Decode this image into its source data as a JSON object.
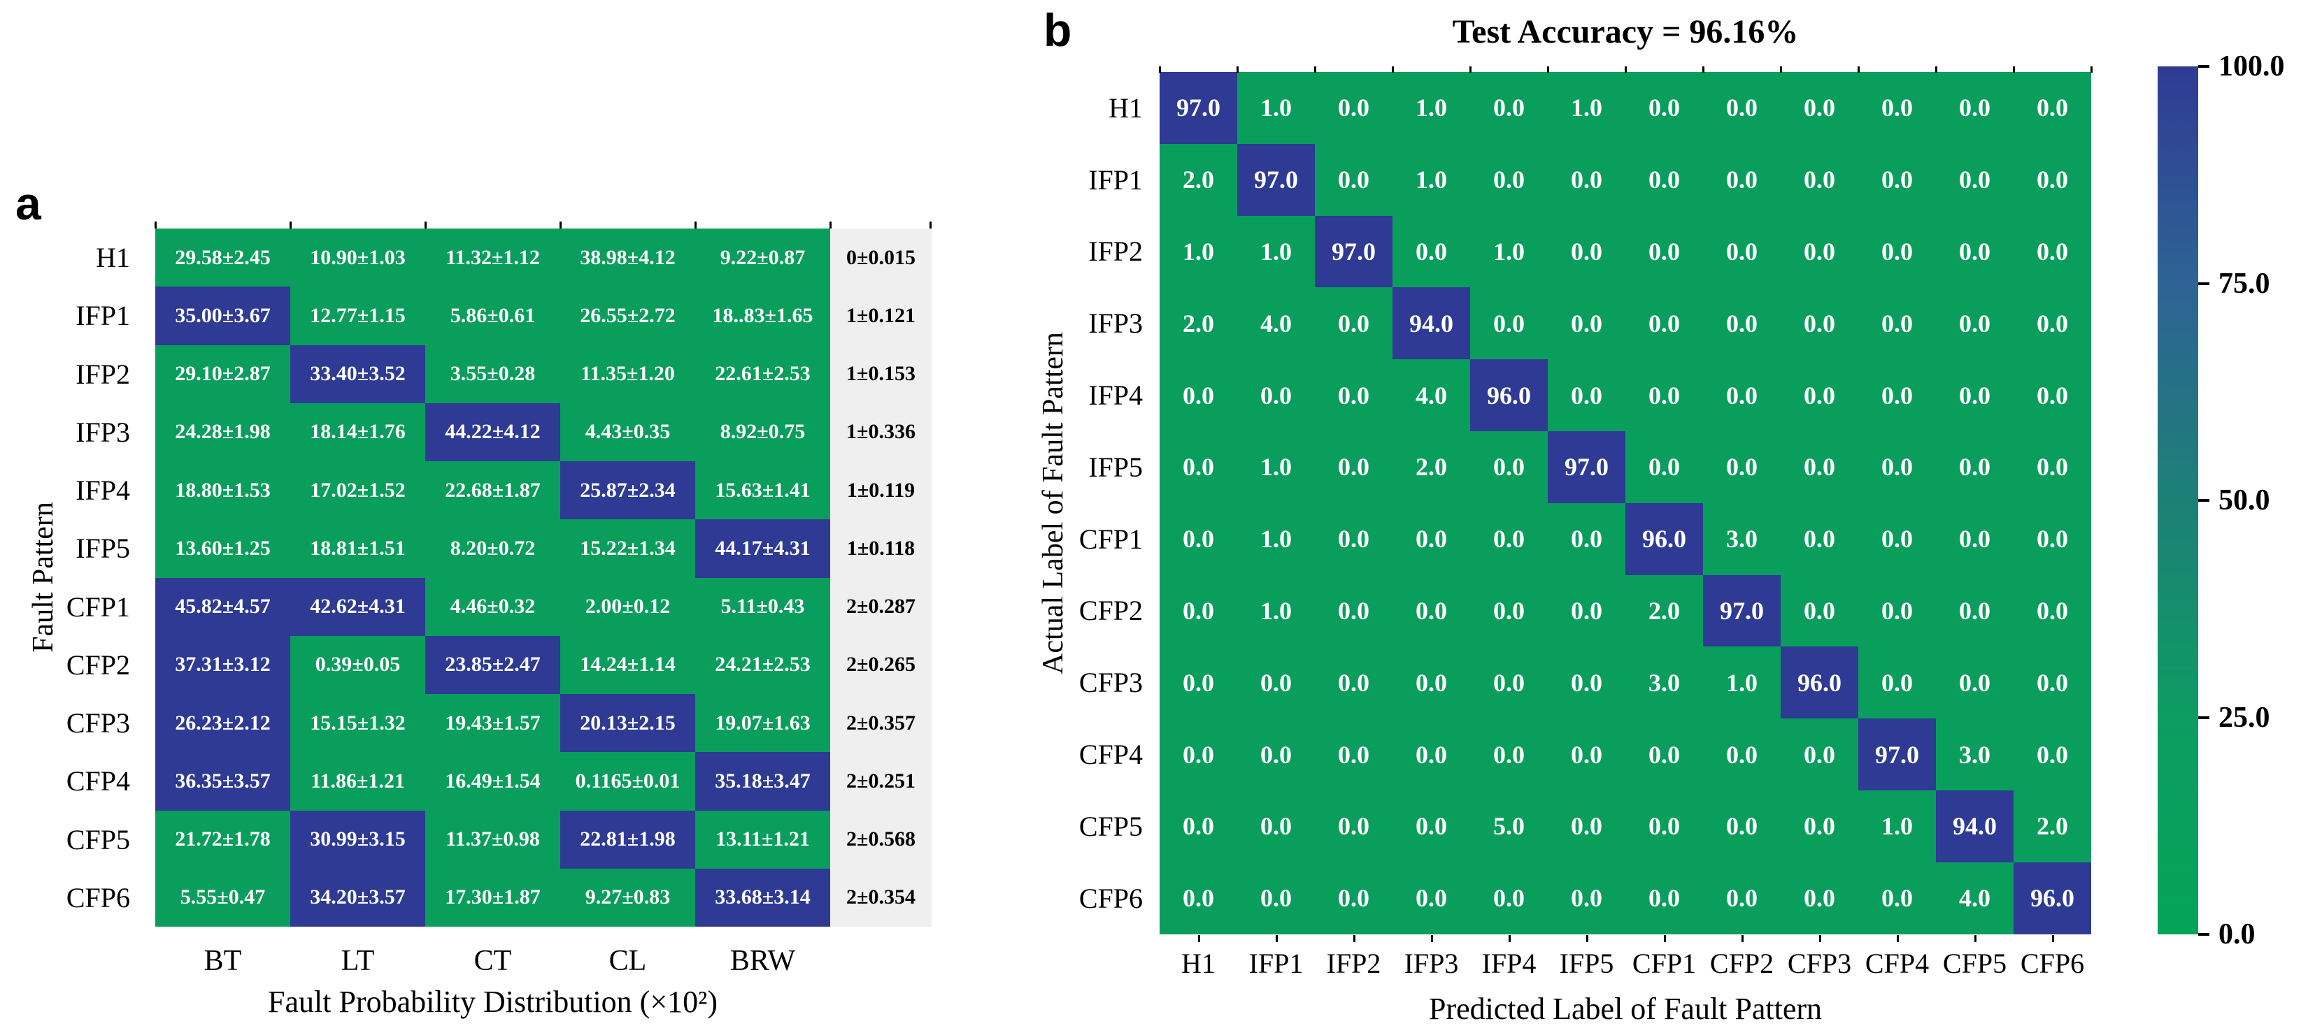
{
  "figure": {
    "panel_a_letter": "a",
    "panel_b_letter": "b"
  },
  "chart_data": [
    {
      "type": "heatmap",
      "panel_label": "a",
      "xlabel": "Fault Probability Distribution (×10²)",
      "ylabel": "Fault Pattern",
      "rows": [
        "H1",
        "IFP1",
        "IFP2",
        "IFP3",
        "IFP4",
        "IFP5",
        "CFP1",
        "CFP2",
        "CFP3",
        "CFP4",
        "CFP5",
        "CFP6"
      ],
      "columns": [
        "BT",
        "LT",
        "CT",
        "CL",
        "BRW"
      ],
      "cells": [
        [
          "29.58±2.45",
          "10.90±1.03",
          "11.32±1.12",
          "38.98±4.12",
          "9.22±0.87"
        ],
        [
          "35.00±3.67",
          "12.77±1.15",
          "5.86±0.61",
          "26.55±2.72",
          "18..83±1.65"
        ],
        [
          "29.10±2.87",
          "33.40±3.52",
          "3.55±0.28",
          "11.35±1.20",
          "22.61±2.53"
        ],
        [
          "24.28±1.98",
          "18.14±1.76",
          "44.22±4.12",
          "4.43±0.35",
          "8.92±0.75"
        ],
        [
          "18.80±1.53",
          "17.02±1.52",
          "22.68±1.87",
          "25.87±2.34",
          "15.63±1.41"
        ],
        [
          "13.60±1.25",
          "18.81±1.51",
          "8.20±0.72",
          "15.22±1.34",
          "44.17±4.31"
        ],
        [
          "45.82±4.57",
          "42.62±4.31",
          "4.46±0.32",
          "2.00±0.12",
          "5.11±0.43"
        ],
        [
          "37.31±3.12",
          "0.39±0.05",
          "23.85±2.47",
          "14.24±1.14",
          "24.21±2.53"
        ],
        [
          "26.23±2.12",
          "15.15±1.32",
          "19.43±1.57",
          "20.13±2.15",
          "19.07±1.63"
        ],
        [
          "36.35±3.57",
          "11.86±1.21",
          "16.49±1.54",
          "0.1165±0.01",
          "35.18±3.47"
        ],
        [
          "21.72±1.78",
          "30.99±3.15",
          "11.37±0.98",
          "22.81±1.98",
          "13.11±1.21"
        ],
        [
          "5.55±0.47",
          "34.20±3.57",
          "17.30±1.87",
          "9.27±0.83",
          "33.68±3.14"
        ]
      ],
      "highlighted": [
        [
          0,
          0,
          0,
          0,
          0
        ],
        [
          1,
          0,
          0,
          0,
          0
        ],
        [
          0,
          1,
          0,
          0,
          0
        ],
        [
          0,
          0,
          1,
          0,
          0
        ],
        [
          0,
          0,
          0,
          1,
          0
        ],
        [
          0,
          0,
          0,
          0,
          1
        ],
        [
          1,
          1,
          0,
          0,
          0
        ],
        [
          1,
          0,
          1,
          0,
          0
        ],
        [
          1,
          0,
          0,
          1,
          0
        ],
        [
          1,
          0,
          0,
          0,
          1
        ],
        [
          0,
          1,
          0,
          1,
          0
        ],
        [
          0,
          1,
          0,
          0,
          1
        ]
      ],
      "row_annotations": [
        "0±0.015",
        "1±0.121",
        "1±0.153",
        "1±0.336",
        "1±0.119",
        "1±0.118",
        "2±0.287",
        "2±0.265",
        "2±0.357",
        "2±0.251",
        "2±0.568",
        "2±0.354"
      ],
      "colors": {
        "low": "#0a9e5c",
        "high": "#2e3a94",
        "annotation_bg": "#efefef"
      }
    },
    {
      "type": "heatmap",
      "panel_label": "b",
      "title": "Test Accuracy = 96.16%",
      "xlabel": "Predicted Label of Fault Pattern",
      "ylabel": "Actual Label of Fault Pattern",
      "labels": [
        "H1",
        "IFP1",
        "IFP2",
        "IFP3",
        "IFP4",
        "IFP5",
        "CFP1",
        "CFP2",
        "CFP3",
        "CFP4",
        "CFP5",
        "CFP6"
      ],
      "matrix": [
        [
          97,
          1,
          0,
          1,
          0,
          1,
          0,
          0,
          0,
          0,
          0,
          0
        ],
        [
          2,
          97,
          0,
          1,
          0,
          0,
          0,
          0,
          0,
          0,
          0,
          0
        ],
        [
          1,
          1,
          97,
          0,
          1,
          0,
          0,
          0,
          0,
          0,
          0,
          0
        ],
        [
          2,
          4,
          0,
          94,
          0,
          0,
          0,
          0,
          0,
          0,
          0,
          0
        ],
        [
          0,
          0,
          0,
          4,
          96,
          0,
          0,
          0,
          0,
          0,
          0,
          0
        ],
        [
          0,
          1,
          0,
          2,
          0,
          97,
          0,
          0,
          0,
          0,
          0,
          0
        ],
        [
          0,
          1,
          0,
          0,
          0,
          0,
          96,
          3,
          0,
          0,
          0,
          0
        ],
        [
          0,
          1,
          0,
          0,
          0,
          0,
          2,
          97,
          0,
          0,
          0,
          0
        ],
        [
          0,
          0,
          0,
          0,
          0,
          0,
          3,
          1,
          96,
          0,
          0,
          0
        ],
        [
          0,
          0,
          0,
          0,
          0,
          0,
          0,
          0,
          0,
          97,
          3,
          0
        ],
        [
          0,
          0,
          0,
          0,
          5,
          0,
          0,
          0,
          0,
          1,
          94,
          2
        ],
        [
          0,
          0,
          0,
          0,
          0,
          0,
          0,
          0,
          0,
          0,
          4,
          96
        ]
      ],
      "value_decimals": 1,
      "color_threshold": 50,
      "colors": {
        "low": "#0a9e5c",
        "high": "#2e3a94"
      },
      "colorbar": {
        "tick_labels": [
          "100.0",
          "75.0",
          "50.0",
          "25.0",
          "0.0"
        ],
        "gradient_top_to_bottom": [
          "#2f3b94",
          "#2e6394",
          "#1d8077",
          "#0d9c62",
          "#04a458"
        ],
        "range": [
          0,
          100
        ]
      }
    }
  ]
}
